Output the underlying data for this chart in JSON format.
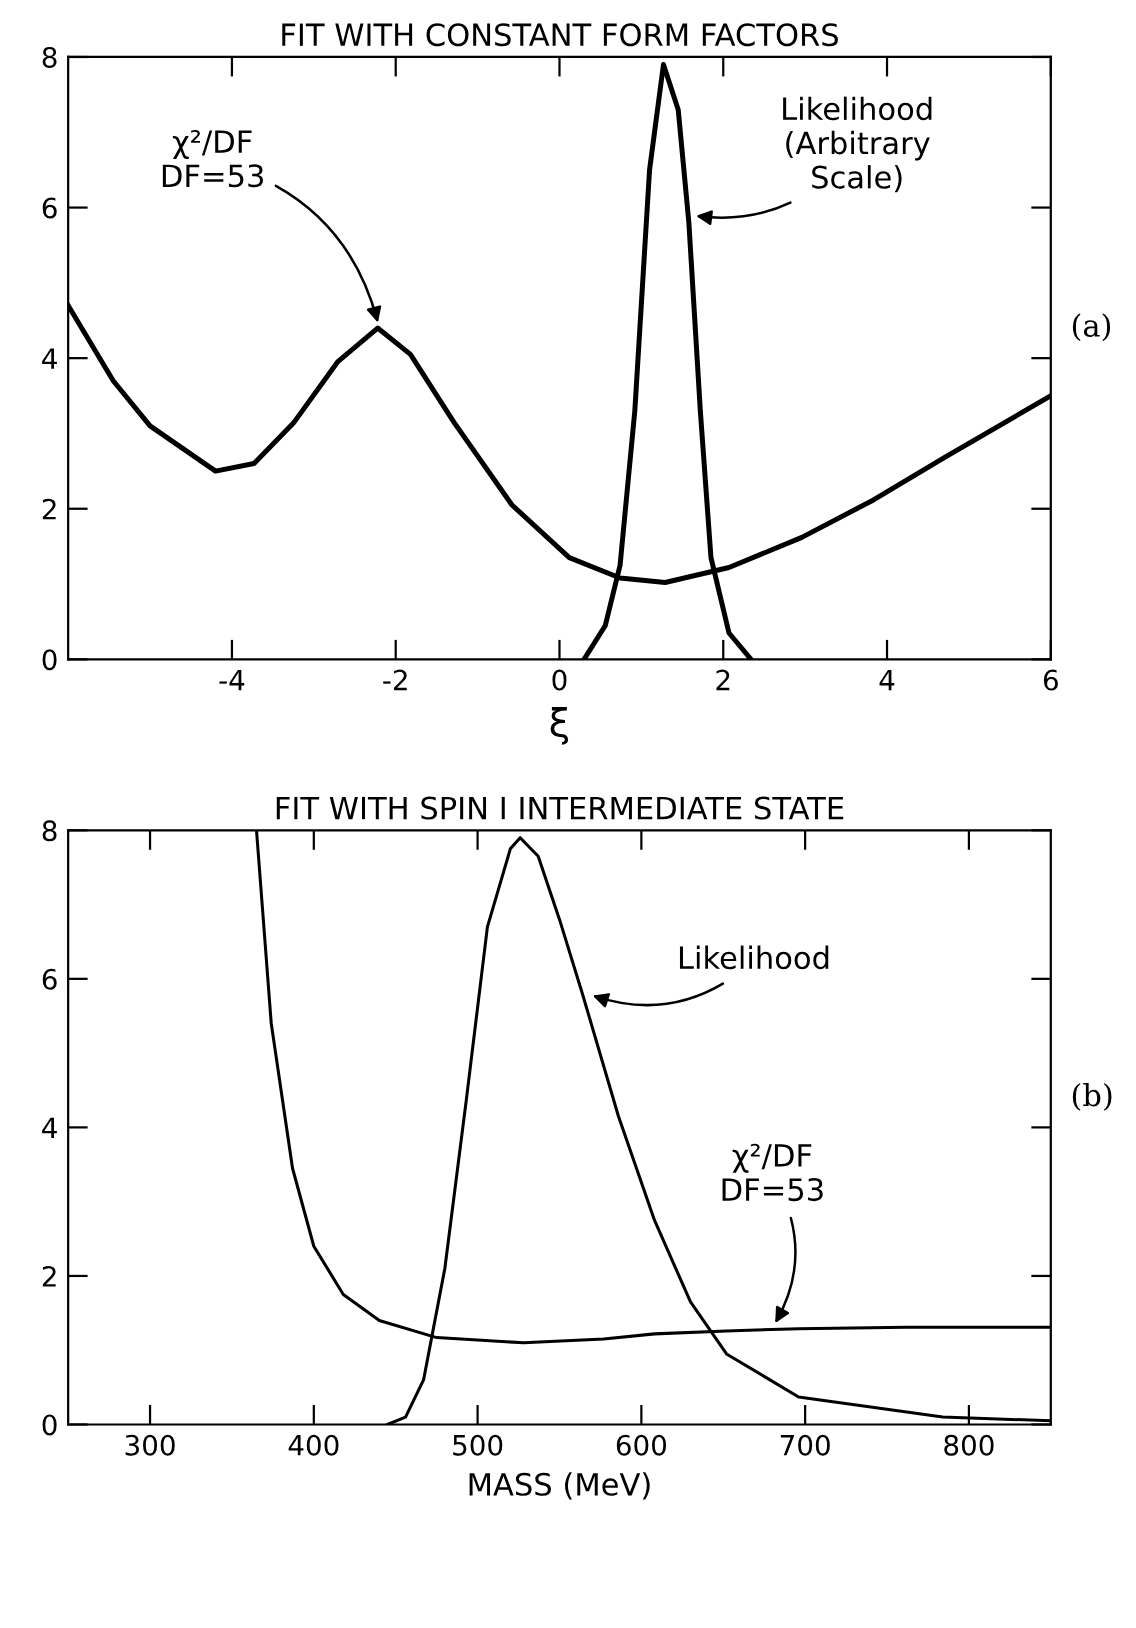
{
  "chart_data": [
    {
      "type": "line",
      "title": "FIT WITH CONSTANT FORM FACTORS",
      "xlabel": "ξ",
      "xlim": [
        -6,
        6
      ],
      "ylim": [
        0,
        8
      ],
      "xticks": [
        -4,
        -2,
        0,
        2,
        4,
        6
      ],
      "yticks": [
        0,
        2,
        4,
        6,
        8
      ],
      "grid": false,
      "legend": false,
      "marker": "none",
      "line_style": "solid",
      "series": [
        {
          "color": "#000000",
          "x": [
            -6,
            -5.45,
            -5.0,
            -4.2,
            -3.73,
            -3.24,
            -2.71,
            -2.22,
            -1.82,
            -1.29,
            -0.58,
            0.12,
            0.74,
            1.29,
            2.07,
            2.96,
            3.84,
            4.73,
            6
          ],
          "values": [
            4.7,
            3.7,
            3.1,
            2.5,
            2.6,
            3.15,
            3.95,
            4.4,
            4.05,
            3.15,
            2.05,
            1.35,
            1.08,
            1.02,
            1.22,
            1.62,
            2.12,
            2.7,
            3.5
          ]
        },
        {
          "color": "#000000",
          "x": [
            0.3,
            0.56,
            0.74,
            0.92,
            1.1,
            1.27,
            1.45,
            1.58,
            1.72,
            1.85,
            2.07,
            2.34
          ],
          "values": [
            0,
            0.45,
            1.25,
            3.3,
            6.5,
            7.9,
            7.3,
            5.8,
            3.3,
            1.35,
            0.35,
            0
          ]
        }
      ],
      "annotations": [
        {
          "text": "χ²/DF\nDF=53",
          "x": -2.2,
          "y": 4.4
        },
        {
          "text": "Likelihood\n(Arbitrary\nScale)",
          "x": 1.6,
          "y": 5.9
        },
        "(a)"
      ]
    },
    {
      "type": "line",
      "title": "FIT WITH SPIN I INTERMEDIATE STATE",
      "xlabel": "MASS (MeV)",
      "xlim": [
        250,
        850
      ],
      "ylim": [
        0,
        8
      ],
      "xticks": [
        300,
        400,
        500,
        600,
        700,
        800
      ],
      "yticks": [
        0,
        2,
        4,
        6,
        8
      ],
      "grid": false,
      "legend": false,
      "marker": "none",
      "line_style": "solid",
      "series": [
        {
          "color": "#000000",
          "x": [
            365,
            374,
            387,
            400,
            418,
            440,
            475,
            528,
            577,
            608,
            652,
            696,
            762,
            850
          ],
          "values": [
            8,
            5.4,
            3.45,
            2.4,
            1.75,
            1.4,
            1.17,
            1.1,
            1.15,
            1.22,
            1.26,
            1.29,
            1.31,
            1.31
          ]
        },
        {
          "color": "#000000",
          "x": [
            445,
            456,
            467,
            480,
            493,
            506,
            520,
            526,
            537,
            550,
            564,
            586,
            608,
            630,
            652,
            696,
            784,
            850
          ],
          "values": [
            0,
            0.1,
            0.6,
            2.1,
            4.35,
            6.7,
            7.75,
            7.9,
            7.65,
            6.8,
            5.8,
            4.15,
            2.75,
            1.65,
            0.95,
            0.37,
            0.1,
            0.05
          ]
        }
      ],
      "annotations": [
        {
          "text": "Likelihood",
          "x": 567,
          "y": 5.8
        },
        {
          "text": "χ²/DF\nDF=53",
          "x": 680,
          "y": 1.3
        },
        "(b)"
      ]
    }
  ]
}
